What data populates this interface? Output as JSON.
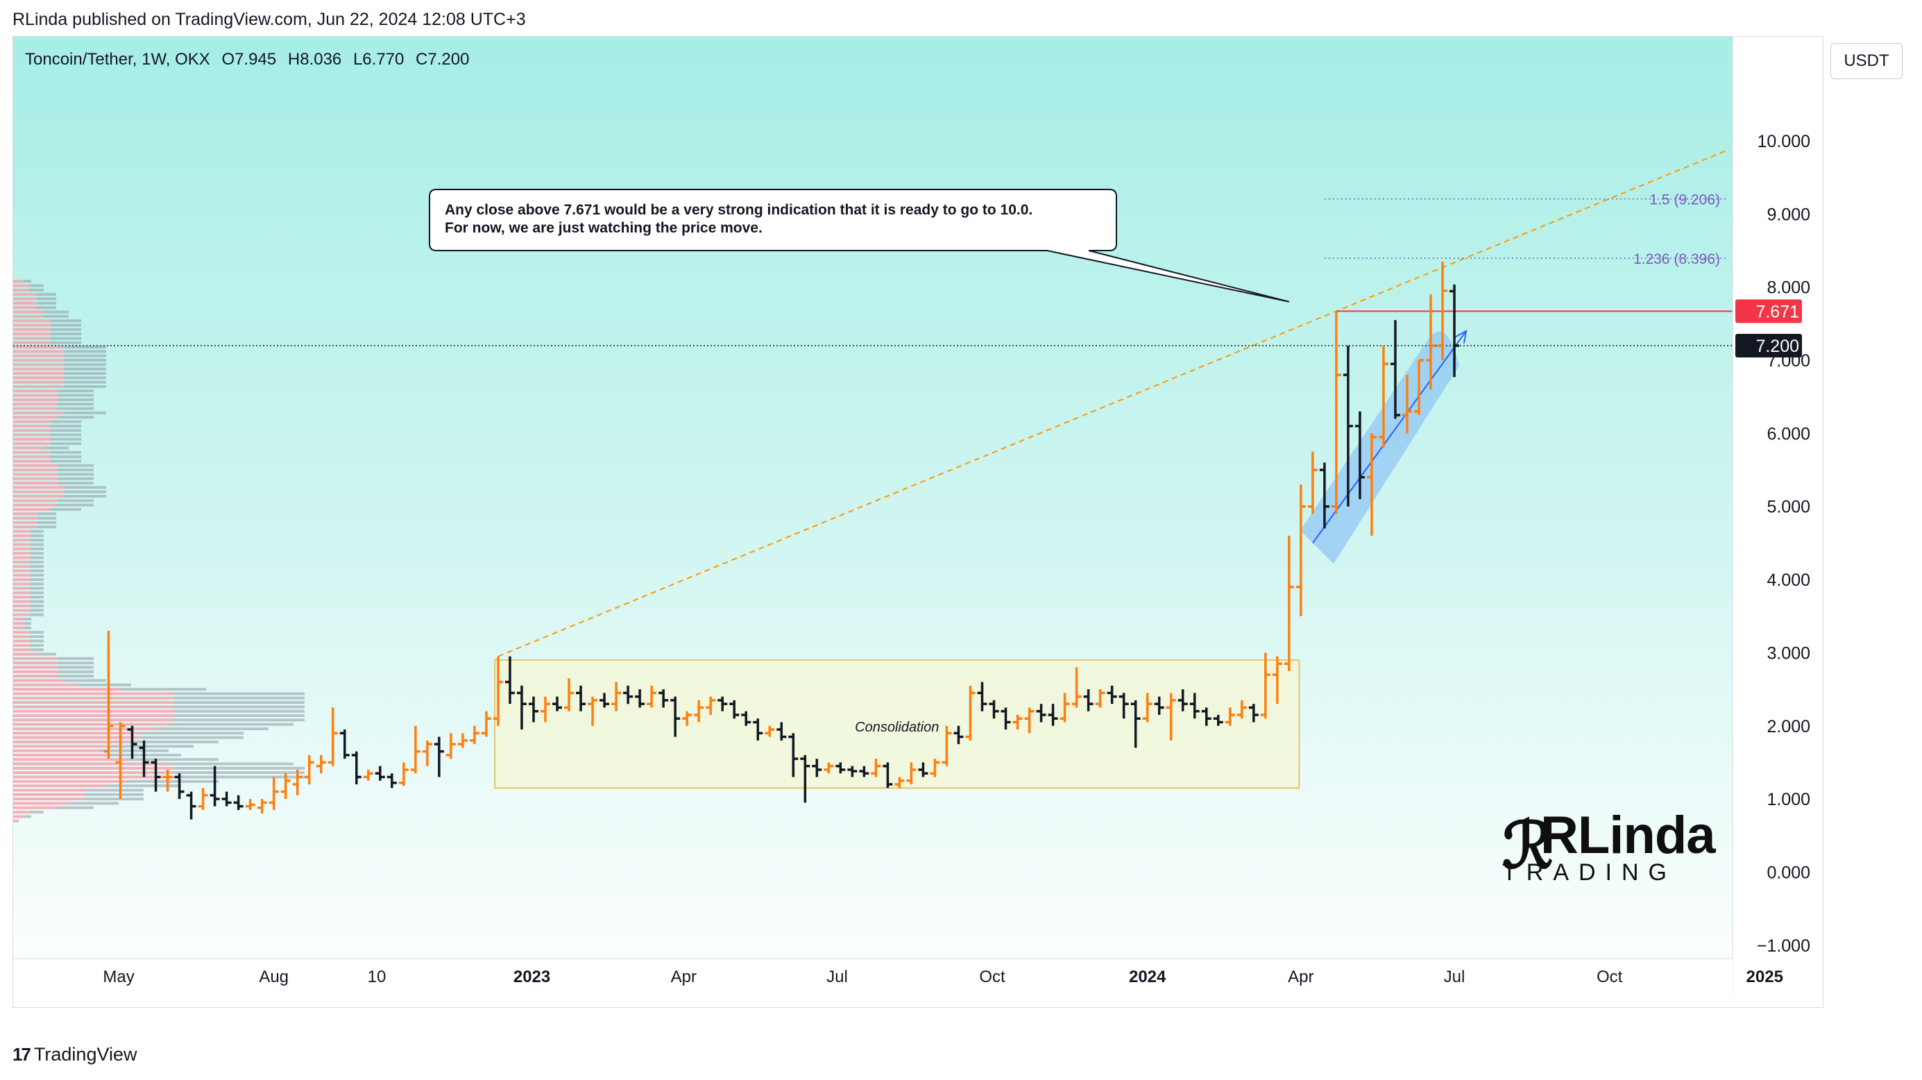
{
  "header": {
    "publisher_line": "RLinda published on TradingView.com, Jun 22, 2024 12:08 UTC+3"
  },
  "symbol": {
    "name": "Toncoin/Tether, 1W, OKX",
    "open": "O7.945",
    "high": "H8.036",
    "low": "L6.770",
    "close": "C7.200"
  },
  "currency_button": "USDT",
  "footer": {
    "logo_text": "TradingView"
  },
  "brand_watermark": {
    "line1": "RLinda",
    "line2": "TRADING"
  },
  "colors": {
    "bg_top": "#a8efe8",
    "bg_bottom": "#ffffff",
    "bull": "#ff7f0e",
    "bear": "#131722",
    "resistance": "#f23645",
    "fib": "#7e57c2",
    "trend": "#ff9800",
    "arrow": "#2962ff",
    "box_fill": "#f2f7d8",
    "box_border": "#e6c56a"
  },
  "chart_data": {
    "type": "ohlc",
    "title": "",
    "xlabel": "",
    "ylabel": "",
    "y_ticks": [
      "10.000",
      "9.000",
      "8.000",
      "7.000",
      "6.000",
      "5.000",
      "4.000",
      "3.000",
      "2.000",
      "1.000",
      "0.000",
      "−1.000"
    ],
    "y_tick_values": [
      10,
      9,
      8,
      7,
      6,
      5,
      4,
      3,
      2,
      1,
      0,
      -1
    ],
    "ylim": [
      -1.6,
      11.5
    ],
    "x_ticks": [
      {
        "label": "May",
        "date": "2022-05-01",
        "bold": false
      },
      {
        "label": "Aug",
        "date": "2022-08-01",
        "bold": false
      },
      {
        "label": "10",
        "date": "2022-10-01",
        "bold": false
      },
      {
        "label": "2023",
        "date": "2023-01-01",
        "bold": true
      },
      {
        "label": "Apr",
        "date": "2023-04-01",
        "bold": false
      },
      {
        "label": "Jul",
        "date": "2023-07-01",
        "bold": false
      },
      {
        "label": "Oct",
        "date": "2023-10-01",
        "bold": false
      },
      {
        "label": "2024",
        "date": "2024-01-01",
        "bold": true
      },
      {
        "label": "Apr",
        "date": "2024-04-01",
        "bold": false
      },
      {
        "label": "Jul",
        "date": "2024-07-01",
        "bold": false
      },
      {
        "label": "Oct",
        "date": "2024-10-01",
        "bold": false
      },
      {
        "label": "2025",
        "date": "2025-01-01",
        "bold": true
      }
    ],
    "candles": [
      {
        "date": "2022-04-25",
        "o": 1.65,
        "h": 3.3,
        "l": 1.55,
        "c": 2.0
      },
      {
        "date": "2022-05-02",
        "o": 1.5,
        "h": 2.05,
        "l": 1.0,
        "c": 2.0
      },
      {
        "date": "2022-05-09",
        "o": 1.95,
        "h": 2.0,
        "l": 1.55,
        "c": 1.75
      },
      {
        "date": "2022-05-16",
        "o": 1.7,
        "h": 1.8,
        "l": 1.3,
        "c": 1.5
      },
      {
        "date": "2022-05-23",
        "o": 1.5,
        "h": 1.55,
        "l": 1.1,
        "c": 1.3
      },
      {
        "date": "2022-05-30",
        "o": 1.3,
        "h": 1.4,
        "l": 1.1,
        "c": 1.3
      },
      {
        "date": "2022-06-06",
        "o": 1.3,
        "h": 1.35,
        "l": 1.0,
        "c": 1.1
      },
      {
        "date": "2022-06-13",
        "o": 1.05,
        "h": 1.1,
        "l": 0.72,
        "c": 0.9
      },
      {
        "date": "2022-06-20",
        "o": 0.9,
        "h": 1.15,
        "l": 0.85,
        "c": 1.05
      },
      {
        "date": "2022-06-27",
        "o": 1.05,
        "h": 1.45,
        "l": 0.9,
        "c": 1.0
      },
      {
        "date": "2022-07-04",
        "o": 1.0,
        "h": 1.1,
        "l": 0.9,
        "c": 0.95
      },
      {
        "date": "2022-07-11",
        "o": 0.95,
        "h": 1.05,
        "l": 0.85,
        "c": 0.9
      },
      {
        "date": "2022-07-18",
        "o": 0.9,
        "h": 1.0,
        "l": 0.85,
        "c": 0.92
      },
      {
        "date": "2022-07-25",
        "o": 0.88,
        "h": 1.0,
        "l": 0.8,
        "c": 0.95
      },
      {
        "date": "2022-08-01",
        "o": 0.95,
        "h": 1.3,
        "l": 0.85,
        "c": 1.1
      },
      {
        "date": "2022-08-08",
        "o": 1.1,
        "h": 1.35,
        "l": 1.0,
        "c": 1.25
      },
      {
        "date": "2022-08-15",
        "o": 1.2,
        "h": 1.4,
        "l": 1.05,
        "c": 1.3
      },
      {
        "date": "2022-08-22",
        "o": 1.3,
        "h": 1.6,
        "l": 1.2,
        "c": 1.5
      },
      {
        "date": "2022-08-29",
        "o": 1.45,
        "h": 1.6,
        "l": 1.35,
        "c": 1.5
      },
      {
        "date": "2022-09-05",
        "o": 1.5,
        "h": 2.25,
        "l": 1.45,
        "c": 1.9
      },
      {
        "date": "2022-09-12",
        "o": 1.9,
        "h": 1.95,
        "l": 1.55,
        "c": 1.6
      },
      {
        "date": "2022-09-19",
        "o": 1.6,
        "h": 1.65,
        "l": 1.2,
        "c": 1.3
      },
      {
        "date": "2022-09-26",
        "o": 1.3,
        "h": 1.4,
        "l": 1.25,
        "c": 1.35
      },
      {
        "date": "2022-10-03",
        "o": 1.35,
        "h": 1.45,
        "l": 1.25,
        "c": 1.3
      },
      {
        "date": "2022-10-10",
        "o": 1.3,
        "h": 1.35,
        "l": 1.15,
        "c": 1.22
      },
      {
        "date": "2022-10-17",
        "o": 1.22,
        "h": 1.5,
        "l": 1.18,
        "c": 1.4
      },
      {
        "date": "2022-10-24",
        "o": 1.4,
        "h": 2.0,
        "l": 1.35,
        "c": 1.65
      },
      {
        "date": "2022-10-31",
        "o": 1.65,
        "h": 1.8,
        "l": 1.45,
        "c": 1.75
      },
      {
        "date": "2022-11-07",
        "o": 1.75,
        "h": 1.85,
        "l": 1.3,
        "c": 1.65
      },
      {
        "date": "2022-11-14",
        "o": 1.6,
        "h": 1.9,
        "l": 1.55,
        "c": 1.75
      },
      {
        "date": "2022-11-21",
        "o": 1.75,
        "h": 1.9,
        "l": 1.7,
        "c": 1.8
      },
      {
        "date": "2022-11-28",
        "o": 1.8,
        "h": 2.0,
        "l": 1.75,
        "c": 1.9
      },
      {
        "date": "2022-12-05",
        "o": 1.9,
        "h": 2.2,
        "l": 1.85,
        "c": 2.1
      },
      {
        "date": "2022-12-12",
        "o": 2.1,
        "h": 2.95,
        "l": 2.0,
        "c": 2.6
      },
      {
        "date": "2022-12-19",
        "o": 2.6,
        "h": 2.95,
        "l": 2.3,
        "c": 2.45
      },
      {
        "date": "2022-12-26",
        "o": 2.45,
        "h": 2.55,
        "l": 1.95,
        "c": 2.3
      },
      {
        "date": "2023-01-02",
        "o": 2.3,
        "h": 2.4,
        "l": 2.05,
        "c": 2.2
      },
      {
        "date": "2023-01-09",
        "o": 2.2,
        "h": 2.4,
        "l": 2.05,
        "c": 2.3
      },
      {
        "date": "2023-01-16",
        "o": 2.3,
        "h": 2.4,
        "l": 2.2,
        "c": 2.25
      },
      {
        "date": "2023-01-23",
        "o": 2.25,
        "h": 2.65,
        "l": 2.2,
        "c": 2.45
      },
      {
        "date": "2023-01-30",
        "o": 2.45,
        "h": 2.55,
        "l": 2.2,
        "c": 2.3
      },
      {
        "date": "2023-02-06",
        "o": 2.3,
        "h": 2.4,
        "l": 2.0,
        "c": 2.35
      },
      {
        "date": "2023-02-13",
        "o": 2.35,
        "h": 2.45,
        "l": 2.25,
        "c": 2.3
      },
      {
        "date": "2023-02-20",
        "o": 2.3,
        "h": 2.6,
        "l": 2.2,
        "c": 2.45
      },
      {
        "date": "2023-02-27",
        "o": 2.45,
        "h": 2.55,
        "l": 2.3,
        "c": 2.4
      },
      {
        "date": "2023-03-06",
        "o": 2.4,
        "h": 2.5,
        "l": 2.25,
        "c": 2.3
      },
      {
        "date": "2023-03-13",
        "o": 2.3,
        "h": 2.55,
        "l": 2.25,
        "c": 2.45
      },
      {
        "date": "2023-03-20",
        "o": 2.45,
        "h": 2.5,
        "l": 2.25,
        "c": 2.35
      },
      {
        "date": "2023-03-27",
        "o": 2.35,
        "h": 2.4,
        "l": 1.85,
        "c": 2.1
      },
      {
        "date": "2023-04-03",
        "o": 2.1,
        "h": 2.2,
        "l": 2.0,
        "c": 2.15
      },
      {
        "date": "2023-04-10",
        "o": 2.15,
        "h": 2.35,
        "l": 2.05,
        "c": 2.25
      },
      {
        "date": "2023-04-17",
        "o": 2.25,
        "h": 2.4,
        "l": 2.15,
        "c": 2.35
      },
      {
        "date": "2023-04-24",
        "o": 2.35,
        "h": 2.4,
        "l": 2.2,
        "c": 2.3
      },
      {
        "date": "2023-05-01",
        "o": 2.3,
        "h": 2.35,
        "l": 2.1,
        "c": 2.15
      },
      {
        "date": "2023-05-08",
        "o": 2.15,
        "h": 2.2,
        "l": 2.0,
        "c": 2.05
      },
      {
        "date": "2023-05-15",
        "o": 2.05,
        "h": 2.1,
        "l": 1.8,
        "c": 1.9
      },
      {
        "date": "2023-05-22",
        "o": 1.9,
        "h": 2.0,
        "l": 1.85,
        "c": 1.95
      },
      {
        "date": "2023-05-29",
        "o": 1.95,
        "h": 2.05,
        "l": 1.8,
        "c": 1.85
      },
      {
        "date": "2023-06-05",
        "o": 1.85,
        "h": 1.9,
        "l": 1.3,
        "c": 1.55
      },
      {
        "date": "2023-06-12",
        "o": 1.55,
        "h": 1.6,
        "l": 0.95,
        "c": 1.45
      },
      {
        "date": "2023-06-19",
        "o": 1.45,
        "h": 1.55,
        "l": 1.3,
        "c": 1.4
      },
      {
        "date": "2023-06-26",
        "o": 1.4,
        "h": 1.5,
        "l": 1.35,
        "c": 1.45
      },
      {
        "date": "2023-07-03",
        "o": 1.45,
        "h": 1.5,
        "l": 1.35,
        "c": 1.4
      },
      {
        "date": "2023-07-10",
        "o": 1.4,
        "h": 1.45,
        "l": 1.3,
        "c": 1.38
      },
      {
        "date": "2023-07-17",
        "o": 1.38,
        "h": 1.45,
        "l": 1.3,
        "c": 1.35
      },
      {
        "date": "2023-07-24",
        "o": 1.35,
        "h": 1.55,
        "l": 1.3,
        "c": 1.45
      },
      {
        "date": "2023-07-31",
        "o": 1.45,
        "h": 1.5,
        "l": 1.15,
        "c": 1.2
      },
      {
        "date": "2023-08-07",
        "o": 1.2,
        "h": 1.3,
        "l": 1.15,
        "c": 1.25
      },
      {
        "date": "2023-08-14",
        "o": 1.25,
        "h": 1.5,
        "l": 1.2,
        "c": 1.4
      },
      {
        "date": "2023-08-21",
        "o": 1.4,
        "h": 1.5,
        "l": 1.3,
        "c": 1.35
      },
      {
        "date": "2023-08-28",
        "o": 1.35,
        "h": 1.55,
        "l": 1.3,
        "c": 1.5
      },
      {
        "date": "2023-09-04",
        "o": 1.5,
        "h": 2.0,
        "l": 1.45,
        "c": 1.9
      },
      {
        "date": "2023-09-11",
        "o": 1.9,
        "h": 2.0,
        "l": 1.75,
        "c": 1.85
      },
      {
        "date": "2023-09-18",
        "o": 1.85,
        "h": 2.55,
        "l": 1.8,
        "c": 2.45
      },
      {
        "date": "2023-09-25",
        "o": 2.45,
        "h": 2.6,
        "l": 2.2,
        "c": 2.3
      },
      {
        "date": "2023-10-02",
        "o": 2.3,
        "h": 2.35,
        "l": 2.1,
        "c": 2.2
      },
      {
        "date": "2023-10-09",
        "o": 2.2,
        "h": 2.25,
        "l": 1.95,
        "c": 2.05
      },
      {
        "date": "2023-10-16",
        "o": 2.05,
        "h": 2.15,
        "l": 1.95,
        "c": 2.1
      },
      {
        "date": "2023-10-23",
        "o": 2.1,
        "h": 2.25,
        "l": 1.9,
        "c": 2.2
      },
      {
        "date": "2023-10-30",
        "o": 2.2,
        "h": 2.3,
        "l": 2.05,
        "c": 2.15
      },
      {
        "date": "2023-11-06",
        "o": 2.15,
        "h": 2.3,
        "l": 2.0,
        "c": 2.1
      },
      {
        "date": "2023-11-13",
        "o": 2.1,
        "h": 2.45,
        "l": 2.05,
        "c": 2.3
      },
      {
        "date": "2023-11-20",
        "o": 2.3,
        "h": 2.8,
        "l": 2.25,
        "c": 2.4
      },
      {
        "date": "2023-11-27",
        "o": 2.4,
        "h": 2.5,
        "l": 2.2,
        "c": 2.3
      },
      {
        "date": "2023-12-04",
        "o": 2.3,
        "h": 2.5,
        "l": 2.25,
        "c": 2.45
      },
      {
        "date": "2023-12-11",
        "o": 2.45,
        "h": 2.55,
        "l": 2.3,
        "c": 2.4
      },
      {
        "date": "2023-12-18",
        "o": 2.4,
        "h": 2.45,
        "l": 2.1,
        "c": 2.3
      },
      {
        "date": "2023-12-25",
        "o": 2.3,
        "h": 2.35,
        "l": 1.7,
        "c": 2.1
      },
      {
        "date": "2024-01-01",
        "o": 2.1,
        "h": 2.45,
        "l": 2.05,
        "c": 2.3
      },
      {
        "date": "2024-01-08",
        "o": 2.3,
        "h": 2.4,
        "l": 2.15,
        "c": 2.25
      },
      {
        "date": "2024-01-15",
        "o": 2.25,
        "h": 2.45,
        "l": 1.8,
        "c": 2.35
      },
      {
        "date": "2024-01-22",
        "o": 2.35,
        "h": 2.5,
        "l": 2.2,
        "c": 2.3
      },
      {
        "date": "2024-01-29",
        "o": 2.3,
        "h": 2.45,
        "l": 2.1,
        "c": 2.2
      },
      {
        "date": "2024-02-05",
        "o": 2.2,
        "h": 2.25,
        "l": 2.0,
        "c": 2.1
      },
      {
        "date": "2024-02-12",
        "o": 2.1,
        "h": 2.15,
        "l": 2.0,
        "c": 2.05
      },
      {
        "date": "2024-02-19",
        "o": 2.05,
        "h": 2.25,
        "l": 2.0,
        "c": 2.15
      },
      {
        "date": "2024-02-26",
        "o": 2.15,
        "h": 2.35,
        "l": 2.1,
        "c": 2.25
      },
      {
        "date": "2024-03-04",
        "o": 2.25,
        "h": 2.3,
        "l": 2.05,
        "c": 2.15
      },
      {
        "date": "2024-03-11",
        "o": 2.15,
        "h": 3.0,
        "l": 2.1,
        "c": 2.7
      },
      {
        "date": "2024-03-18",
        "o": 2.7,
        "h": 2.95,
        "l": 2.3,
        "c": 2.85
      },
      {
        "date": "2024-03-25",
        "o": 2.85,
        "h": 4.6,
        "l": 2.75,
        "c": 3.9
      },
      {
        "date": "2024-04-01",
        "o": 3.9,
        "h": 5.3,
        "l": 3.5,
        "c": 5.0
      },
      {
        "date": "2024-04-08",
        "o": 5.0,
        "h": 5.75,
        "l": 4.9,
        "c": 5.5
      },
      {
        "date": "2024-04-15",
        "o": 5.5,
        "h": 5.6,
        "l": 4.7,
        "c": 5.0
      },
      {
        "date": "2024-04-22",
        "o": 5.0,
        "h": 7.671,
        "l": 4.9,
        "c": 6.8
      },
      {
        "date": "2024-04-29",
        "o": 6.8,
        "h": 7.2,
        "l": 5.0,
        "c": 6.1
      },
      {
        "date": "2024-05-06",
        "o": 6.1,
        "h": 6.3,
        "l": 5.1,
        "c": 5.4
      },
      {
        "date": "2024-05-13",
        "o": 5.4,
        "h": 6.0,
        "l": 4.6,
        "c": 5.95
      },
      {
        "date": "2024-05-20",
        "o": 5.95,
        "h": 7.2,
        "l": 5.8,
        "c": 6.95
      },
      {
        "date": "2024-05-27",
        "o": 6.95,
        "h": 7.55,
        "l": 6.2,
        "c": 6.25
      },
      {
        "date": "2024-06-03",
        "o": 6.25,
        "h": 6.8,
        "l": 6.0,
        "c": 6.3
      },
      {
        "date": "2024-06-10",
        "o": 6.3,
        "h": 7.0,
        "l": 6.25,
        "c": 7.0
      },
      {
        "date": "2024-06-17",
        "o": 7.0,
        "h": 7.9,
        "l": 6.6,
        "c": 7.2
      },
      {
        "date": "2024-06-24",
        "o": 7.2,
        "h": 8.35,
        "l": 7.0,
        "c": 7.95
      },
      {
        "date": "2024-07-01",
        "o": 7.945,
        "h": 8.036,
        "l": 6.77,
        "c": 7.2
      }
    ],
    "horizontal_levels": [
      {
        "value": 7.671,
        "label": "7.671",
        "kind": "resistance"
      },
      {
        "value": 7.2,
        "label": "7.200",
        "kind": "last-price"
      }
    ],
    "fib_levels": [
      {
        "value": 9.206,
        "label": "1.5 (9.206)"
      },
      {
        "value": 8.396,
        "label": "1.236 (8.396)"
      }
    ],
    "trendline": {
      "start": {
        "date": "2022-12-12",
        "y": 2.95
      },
      "end": {
        "date": "2024-04-22",
        "y": 7.671
      }
    },
    "consolidation_box": {
      "label": "Consolidation",
      "date_start": "2022-12-10",
      "date_end": "2024-03-31",
      "y_low": 1.15,
      "y_high": 2.9
    },
    "uptrend_arrow": {
      "start": {
        "date": "2024-04-08",
        "y": 4.5
      },
      "end": {
        "date": "2024-07-08",
        "y": 7.4
      }
    },
    "annotation": {
      "line1": "Any close above 7.671 would be a very strong indication that it is ready to go to 10.0.",
      "line2": "For now, we are just watching the price move.",
      "pointer_target": {
        "date": "2024-03-25",
        "y": 7.8
      }
    }
  }
}
